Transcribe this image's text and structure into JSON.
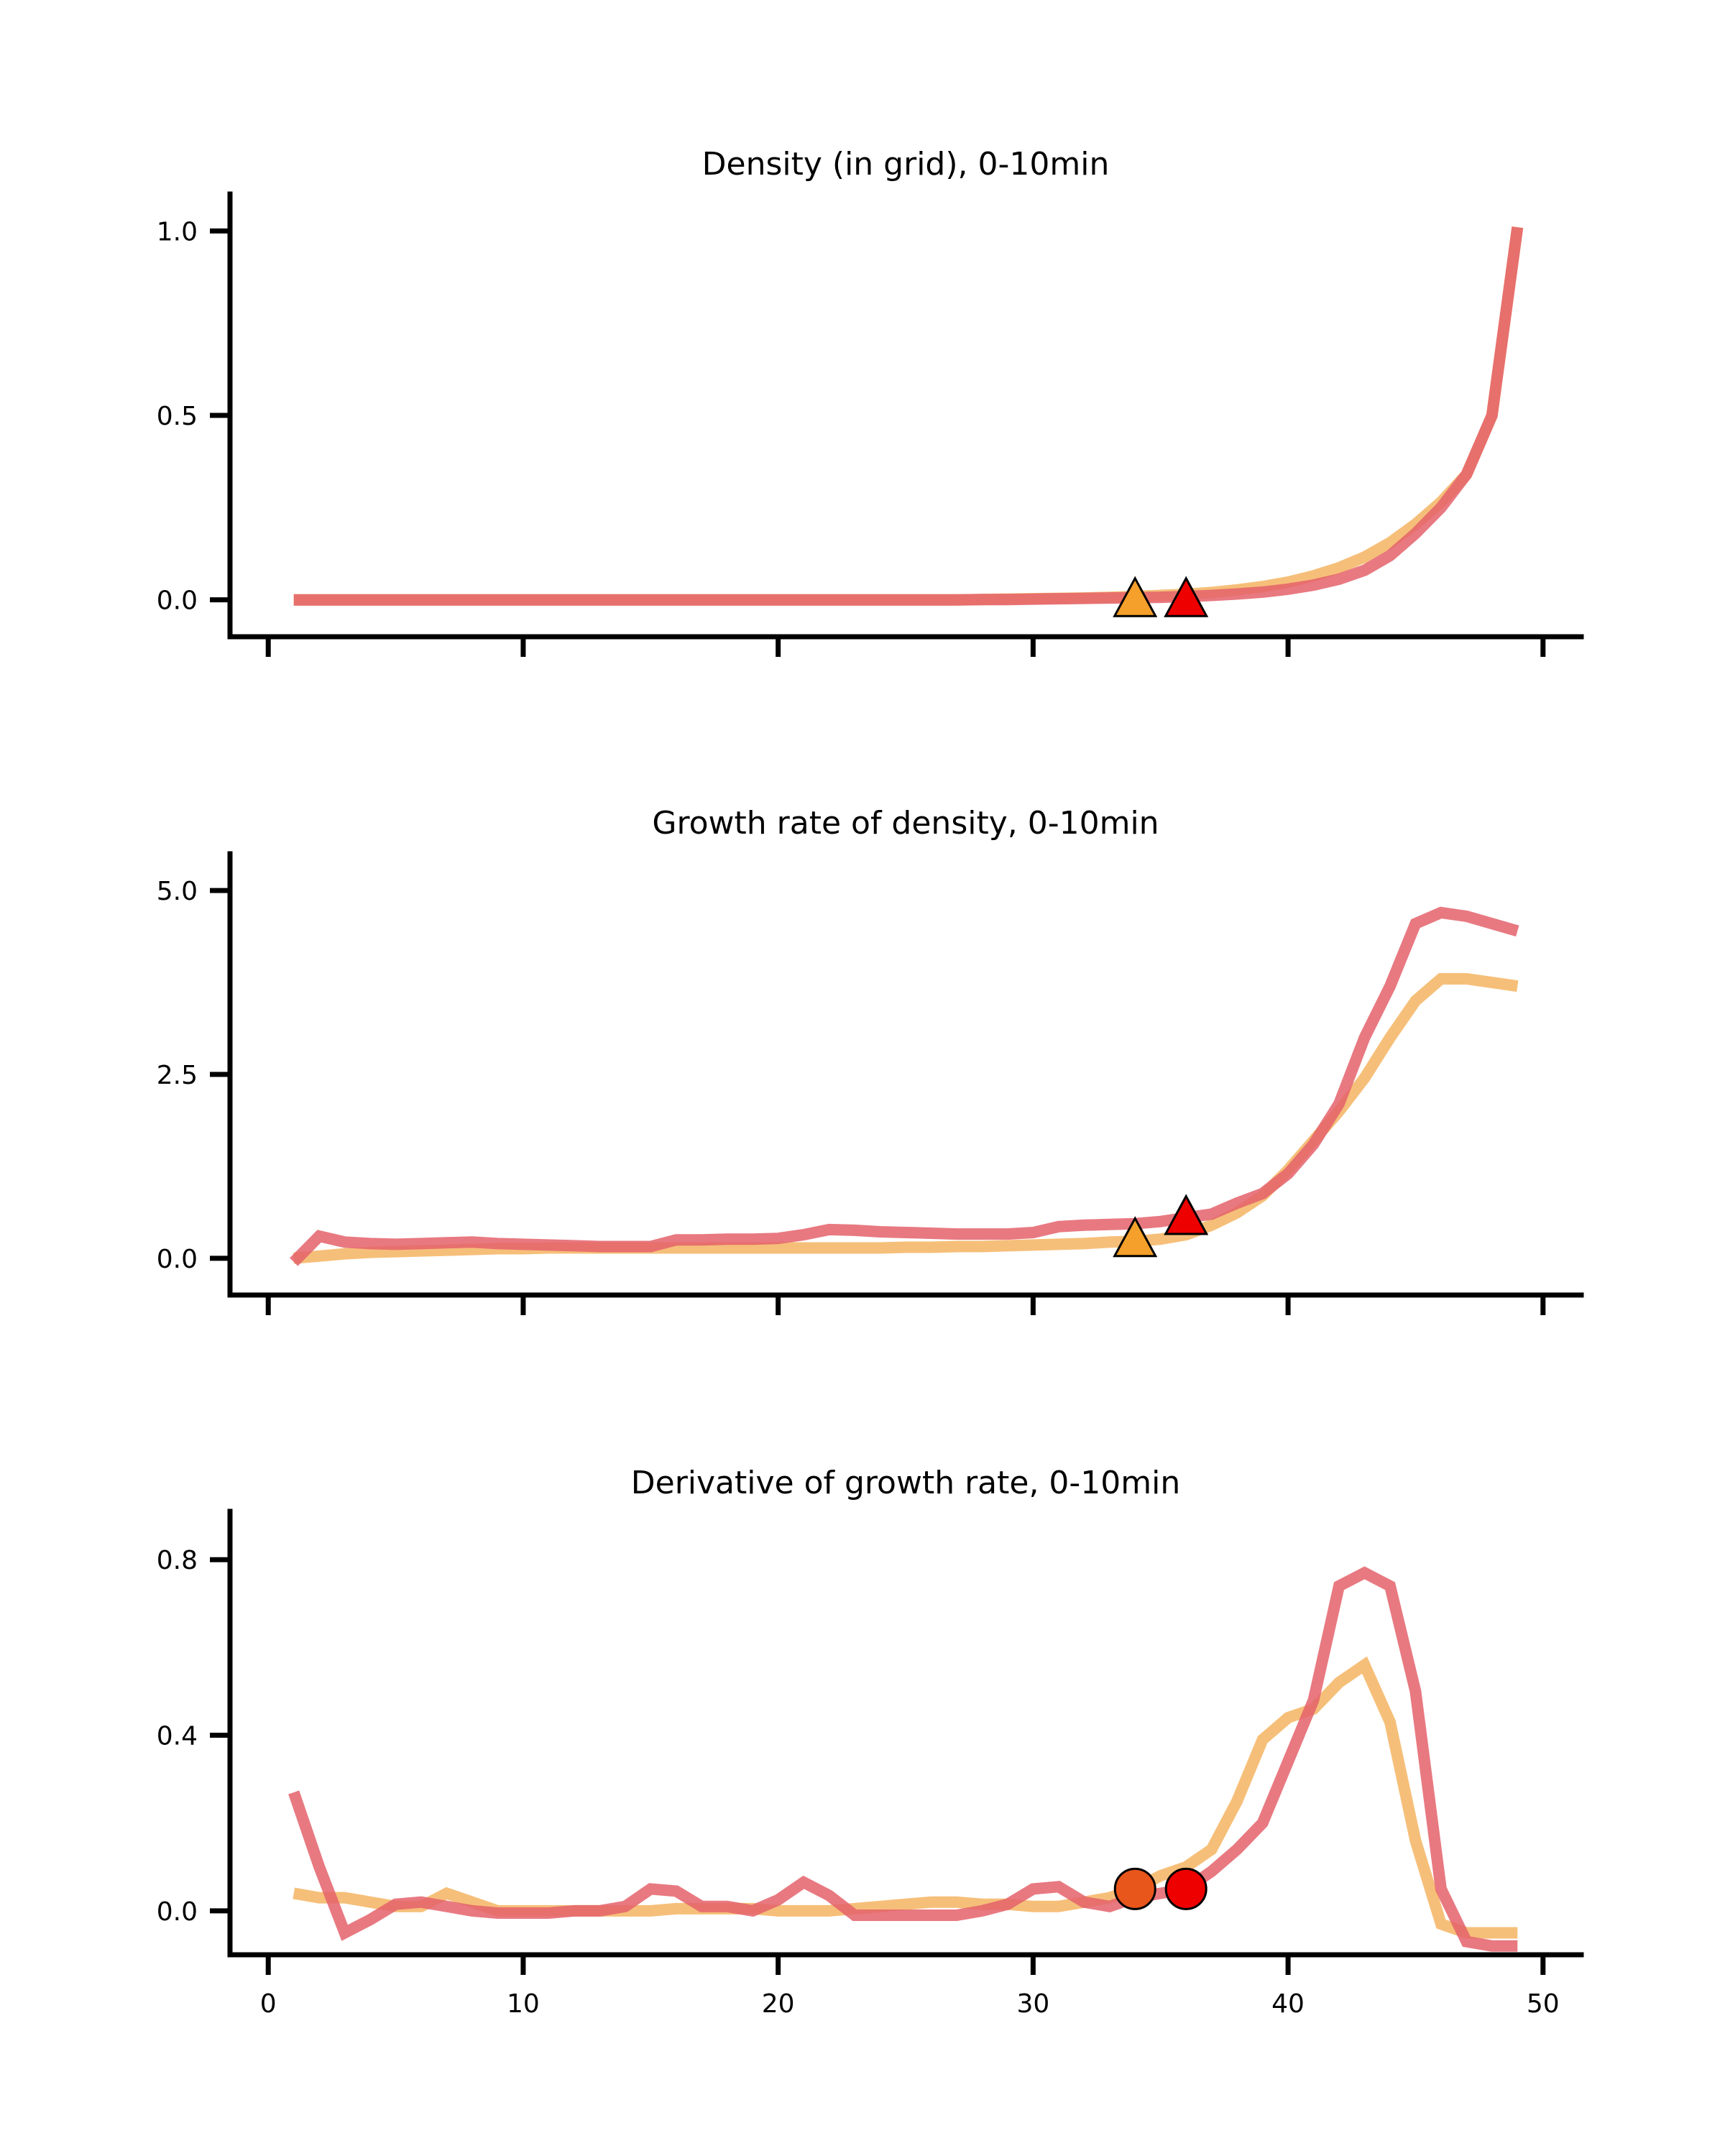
{
  "colors": {
    "series_orange": "#f5b461",
    "series_red": "#e4616b",
    "marker_orange": "#f5a02a",
    "marker_red": "#ee0000",
    "marker_orange_dark": "#e8561c",
    "axis": "#000000"
  },
  "chart_data": [
    {
      "type": "line",
      "title": "Density (in grid), 0-10min",
      "xlabel": "",
      "ylabel": "",
      "xlim": [
        -1.5,
        51.5
      ],
      "ylim": [
        -0.1,
        1.1
      ],
      "xticks": [
        0,
        10,
        20,
        30,
        40,
        50
      ],
      "show_x_tick_labels": false,
      "yticks": [
        0.0,
        0.5,
        1.0
      ],
      "ytick_labels": [
        "0.0",
        "0.5",
        "1.0"
      ],
      "grid": false,
      "legend": "none",
      "x": [
        1,
        2,
        3,
        4,
        5,
        6,
        7,
        8,
        9,
        10,
        11,
        12,
        13,
        14,
        15,
        16,
        17,
        18,
        19,
        20,
        21,
        22,
        23,
        24,
        25,
        26,
        27,
        28,
        29,
        30,
        31,
        32,
        33,
        34,
        35,
        36,
        37,
        38,
        39,
        40,
        41,
        42,
        43,
        44,
        45,
        46,
        47,
        48,
        49
      ],
      "series": [
        {
          "color": "#f5b461",
          "values": [
            0,
            0,
            0,
            0,
            0,
            0,
            0,
            0,
            0,
            0,
            0,
            0,
            0,
            0,
            0,
            0,
            0,
            0,
            0,
            0,
            0,
            0,
            0,
            0,
            0,
            0,
            0,
            0.001,
            0.002,
            0.003,
            0.004,
            0.005,
            0.007,
            0.009,
            0.012,
            0.015,
            0.02,
            0.027,
            0.036,
            0.048,
            0.065,
            0.087,
            0.116,
            0.155,
            0.205,
            0.265,
            0.34,
            0.5,
            1.01
          ]
        },
        {
          "color": "#e4616b",
          "values": [
            0,
            0,
            0,
            0,
            0,
            0,
            0,
            0,
            0,
            0,
            0,
            0,
            0,
            0,
            0,
            0,
            0,
            0,
            0,
            0,
            0,
            0,
            0,
            0,
            0,
            0,
            0,
            0.001,
            0.001,
            0.002,
            0.003,
            0.004,
            0.005,
            0.006,
            0.007,
            0.009,
            0.012,
            0.016,
            0.021,
            0.029,
            0.04,
            0.056,
            0.08,
            0.12,
            0.18,
            0.25,
            0.34,
            0.5,
            1.01
          ]
        }
      ],
      "markers": [
        {
          "x": 34,
          "y": 0.0,
          "shape": "triangle",
          "color": "#f5a02a"
        },
        {
          "x": 36,
          "y": 0.0,
          "shape": "triangle",
          "color": "#ee0000"
        }
      ]
    },
    {
      "type": "line",
      "title": "Growth rate of density, 0-10min",
      "xlabel": "",
      "ylabel": "",
      "xlim": [
        -1.5,
        51.5
      ],
      "ylim": [
        -0.5,
        5.5
      ],
      "xticks": [
        0,
        10,
        20,
        30,
        40,
        50
      ],
      "show_x_tick_labels": false,
      "yticks": [
        0.0,
        2.5,
        5.0
      ],
      "ytick_labels": [
        "0.0",
        "2.5",
        "5.0"
      ],
      "grid": false,
      "legend": "none",
      "x": [
        1,
        2,
        3,
        4,
        5,
        6,
        7,
        8,
        9,
        10,
        11,
        12,
        13,
        14,
        15,
        16,
        17,
        18,
        19,
        20,
        21,
        22,
        23,
        24,
        25,
        26,
        27,
        28,
        29,
        30,
        31,
        32,
        33,
        34,
        35,
        36,
        37,
        38,
        39,
        40,
        41,
        42,
        43,
        44,
        45,
        46,
        47,
        48,
        49
      ],
      "series": [
        {
          "color": "#f5b461",
          "values": [
            0.0,
            0.03,
            0.06,
            0.08,
            0.09,
            0.1,
            0.11,
            0.12,
            0.13,
            0.13,
            0.14,
            0.14,
            0.14,
            0.14,
            0.14,
            0.14,
            0.14,
            0.14,
            0.14,
            0.14,
            0.14,
            0.14,
            0.14,
            0.14,
            0.15,
            0.15,
            0.16,
            0.16,
            0.17,
            0.18,
            0.19,
            0.2,
            0.22,
            0.23,
            0.26,
            0.32,
            0.45,
            0.62,
            0.85,
            1.2,
            1.6,
            2.0,
            2.45,
            3.0,
            3.5,
            3.8,
            3.8,
            3.75,
            3.7
          ]
        },
        {
          "color": "#e4616b",
          "values": [
            -0.05,
            0.3,
            0.22,
            0.2,
            0.19,
            0.2,
            0.21,
            0.22,
            0.2,
            0.19,
            0.18,
            0.17,
            0.16,
            0.16,
            0.16,
            0.25,
            0.25,
            0.26,
            0.26,
            0.27,
            0.32,
            0.39,
            0.38,
            0.36,
            0.35,
            0.34,
            0.33,
            0.33,
            0.33,
            0.35,
            0.43,
            0.45,
            0.46,
            0.47,
            0.5,
            0.55,
            0.6,
            0.75,
            0.88,
            1.15,
            1.55,
            2.1,
            3.0,
            3.7,
            4.55,
            4.7,
            4.65,
            4.55,
            4.45
          ]
        }
      ],
      "markers": [
        {
          "x": 34,
          "y": 0.25,
          "shape": "triangle",
          "color": "#f5a02a"
        },
        {
          "x": 36,
          "y": 0.55,
          "shape": "triangle",
          "color": "#ee0000"
        }
      ]
    },
    {
      "type": "line",
      "title": "Derivative of growth rate, 0-10min",
      "xlabel": "",
      "ylabel": "",
      "xlim": [
        -1.5,
        51.5
      ],
      "ylim": [
        -0.1,
        0.91
      ],
      "xticks": [
        0,
        10,
        20,
        30,
        40,
        50
      ],
      "xtick_labels": [
        "0",
        "10",
        "20",
        "30",
        "40",
        "50"
      ],
      "show_x_tick_labels": true,
      "yticks": [
        0.0,
        0.4,
        0.8
      ],
      "ytick_labels": [
        "0.0",
        "0.4",
        "0.8"
      ],
      "grid": false,
      "legend": "none",
      "x": [
        1,
        2,
        3,
        4,
        5,
        6,
        7,
        8,
        9,
        10,
        11,
        12,
        13,
        14,
        15,
        16,
        17,
        18,
        19,
        20,
        21,
        22,
        23,
        24,
        25,
        26,
        27,
        28,
        29,
        30,
        31,
        32,
        33,
        34,
        35,
        36,
        37,
        38,
        39,
        40,
        41,
        42,
        43,
        44,
        45,
        46,
        47,
        48,
        49
      ],
      "series": [
        {
          "color": "#f5b461",
          "values": [
            0.04,
            0.03,
            0.03,
            0.02,
            0.01,
            0.01,
            0.04,
            0.02,
            0.0,
            0.0,
            0.0,
            0.0,
            0.0,
            0.0,
            0.0,
            0.005,
            0.005,
            0.005,
            0.005,
            0.0,
            0.0,
            0.0,
            0.005,
            0.01,
            0.015,
            0.02,
            0.02,
            0.015,
            0.015,
            0.01,
            0.01,
            0.02,
            0.03,
            0.05,
            0.08,
            0.1,
            0.14,
            0.25,
            0.39,
            0.44,
            0.46,
            0.52,
            0.56,
            0.43,
            0.16,
            -0.03,
            -0.05,
            -0.05,
            -0.05
          ]
        },
        {
          "color": "#e4616b",
          "values": [
            0.27,
            0.1,
            -0.05,
            -0.02,
            0.015,
            0.02,
            0.01,
            0.0,
            -0.005,
            -0.005,
            -0.005,
            0.0,
            0.0,
            0.01,
            0.05,
            0.045,
            0.01,
            0.01,
            0.0,
            0.025,
            0.065,
            0.035,
            -0.01,
            -0.01,
            -0.01,
            -0.01,
            -0.01,
            0.0,
            0.015,
            0.05,
            0.055,
            0.02,
            0.01,
            0.03,
            0.04,
            0.05,
            0.09,
            0.14,
            0.2,
            0.34,
            0.48,
            0.74,
            0.77,
            0.74,
            0.5,
            0.05,
            -0.07,
            -0.08,
            -0.08
          ]
        }
      ],
      "markers": [
        {
          "x": 34,
          "y": 0.05,
          "shape": "circle",
          "color": "#e8561c"
        },
        {
          "x": 36,
          "y": 0.05,
          "shape": "circle",
          "color": "#ee0000"
        }
      ]
    }
  ]
}
